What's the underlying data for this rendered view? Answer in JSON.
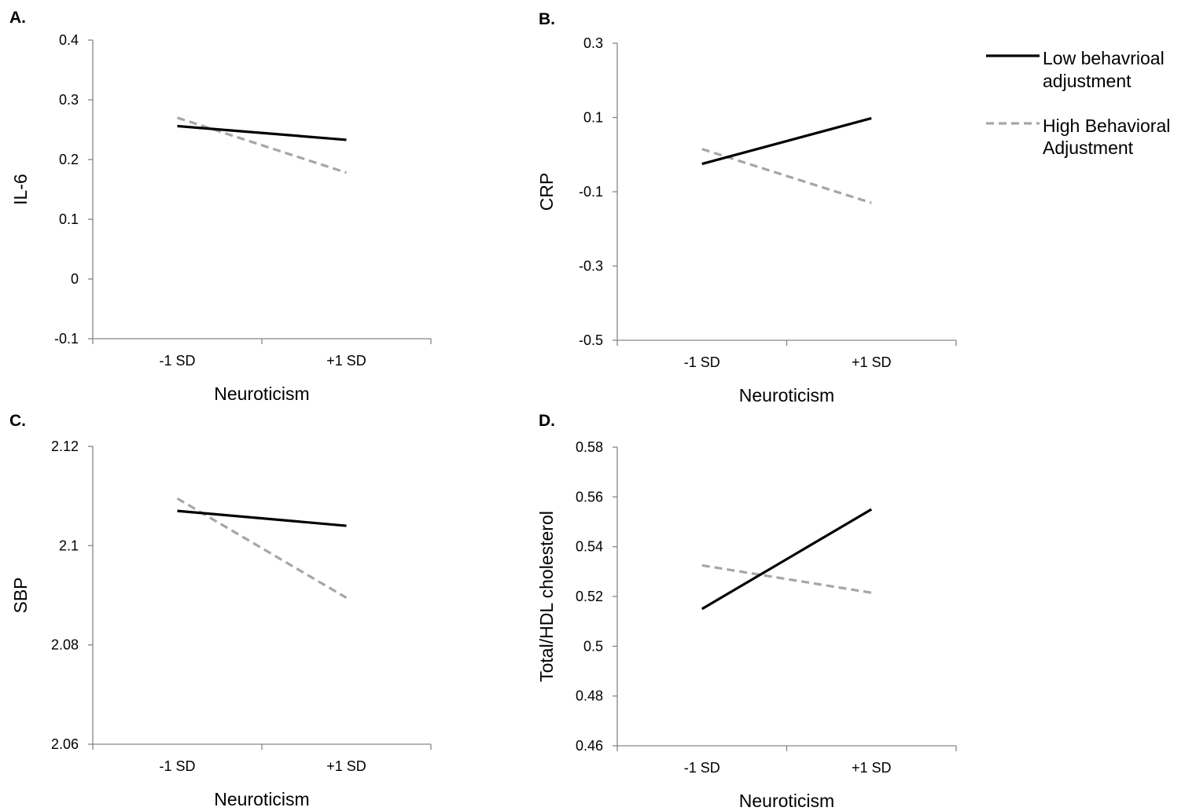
{
  "legend": {
    "items": [
      {
        "name": "Low behavrioal adjustment",
        "lines": [
          "Low behavrioal",
          "adjustment"
        ],
        "style": "solid",
        "color": "#000000"
      },
      {
        "name": "High Behavioral Adjustment",
        "lines": [
          "High Behavioral",
          "Adjustment"
        ],
        "style": "dashed",
        "color": "#a6a6a6"
      }
    ]
  },
  "chart_data": [
    {
      "type": "line",
      "panel": "A.",
      "title": "",
      "xlabel": "Neuroticism",
      "ylabel": "IL-6",
      "categories": [
        "-1 SD",
        "+1 SD"
      ],
      "ylim": [
        -0.1,
        0.4
      ],
      "yticks": [
        "-0.1",
        "0",
        "0.1",
        "0.2",
        "0.3",
        "0.4"
      ],
      "series": [
        {
          "name": "Low behavrioal adjustment",
          "values": [
            0.256,
            0.233
          ]
        },
        {
          "name": "High Behavioral Adjustment",
          "values": [
            0.27,
            0.178
          ]
        }
      ]
    },
    {
      "type": "line",
      "panel": "B.",
      "title": "",
      "xlabel": "Neuroticism",
      "ylabel": "CRP",
      "categories": [
        "-1 SD",
        "+1 SD"
      ],
      "ylim": [
        -0.5,
        0.3
      ],
      "yticks": [
        "-0.5",
        "-0.3",
        "-0.1",
        "0.1",
        "0.3"
      ],
      "series": [
        {
          "name": "Low behavrioal adjustment",
          "values": [
            -0.025,
            0.098
          ]
        },
        {
          "name": "High Behavioral Adjustment",
          "values": [
            0.015,
            -0.13
          ]
        }
      ]
    },
    {
      "type": "line",
      "panel": "C.",
      "title": "",
      "xlabel": "Neuroticism",
      "ylabel": "SBP",
      "categories": [
        "-1 SD",
        "+1 SD"
      ],
      "ylim": [
        2.06,
        2.12
      ],
      "yticks": [
        "2.06",
        "2.08",
        "2.1",
        "2.12"
      ],
      "series": [
        {
          "name": "Low behavrioal adjustment",
          "values": [
            2.107,
            2.104
          ]
        },
        {
          "name": "High Behavioral Adjustment",
          "values": [
            2.1095,
            2.0895
          ]
        }
      ]
    },
    {
      "type": "line",
      "panel": "D.",
      "title": "",
      "xlabel": "Neuroticism",
      "ylabel": "Total/HDL cholesterol",
      "categories": [
        "-1 SD",
        "+1 SD"
      ],
      "ylim": [
        0.46,
        0.58
      ],
      "yticks": [
        "0.46",
        "0.48",
        "0.5",
        "0.52",
        "0.54",
        "0.56",
        "0.58"
      ],
      "series": [
        {
          "name": "Low behavrioal adjustment",
          "values": [
            0.515,
            0.555
          ]
        },
        {
          "name": "High Behavioral Adjustment",
          "values": [
            0.5325,
            0.5215
          ]
        }
      ]
    }
  ]
}
